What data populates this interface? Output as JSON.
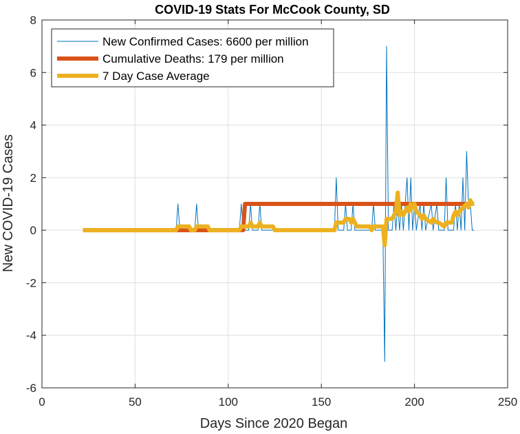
{
  "chart_data": {
    "type": "line",
    "title": "COVID-19 Stats For McCook County, SD",
    "xlabel": "Days Since 2020 Began",
    "ylabel": "New COVID-19 Cases",
    "xlim": [
      0,
      250
    ],
    "ylim": [
      -6,
      8
    ],
    "xticks": [
      0,
      50,
      100,
      150,
      200,
      250
    ],
    "yticks": [
      -6,
      -4,
      -2,
      0,
      2,
      4,
      6,
      8
    ],
    "grid": true,
    "legend_position": "top-left",
    "series": [
      {
        "name": "New Confirmed Cases: 6600 per million",
        "color": "#0072BD",
        "points": [
          [
            22,
            0
          ],
          [
            72,
            0
          ],
          [
            73,
            1
          ],
          [
            74,
            0
          ],
          [
            82,
            0
          ],
          [
            83,
            1
          ],
          [
            84,
            0
          ],
          [
            106,
            0
          ],
          [
            107,
            1
          ],
          [
            108,
            0
          ],
          [
            111,
            0
          ],
          [
            112,
            1
          ],
          [
            113,
            0
          ],
          [
            116,
            0
          ],
          [
            117,
            1
          ],
          [
            118,
            0
          ],
          [
            157,
            0
          ],
          [
            158,
            2
          ],
          [
            159,
            0
          ],
          [
            162,
            0
          ],
          [
            163,
            1
          ],
          [
            164,
            0
          ],
          [
            166,
            0
          ],
          [
            167,
            1
          ],
          [
            168,
            0
          ],
          [
            177,
            0
          ],
          [
            178,
            1
          ],
          [
            179,
            0
          ],
          [
            183,
            0
          ],
          [
            184,
            -5
          ],
          [
            185,
            7
          ],
          [
            186,
            0
          ],
          [
            188,
            0
          ],
          [
            189,
            1
          ],
          [
            190,
            0
          ],
          [
            191,
            1
          ],
          [
            192,
            0
          ],
          [
            193,
            1
          ],
          [
            194,
            0
          ],
          [
            196,
            2
          ],
          [
            197,
            0
          ],
          [
            198,
            2
          ],
          [
            199,
            0
          ],
          [
            200,
            1
          ],
          [
            201,
            0
          ],
          [
            203,
            1
          ],
          [
            204,
            0
          ],
          [
            205,
            1
          ],
          [
            206,
            0
          ],
          [
            209,
            1
          ],
          [
            210,
            0
          ],
          [
            212,
            1
          ],
          [
            213,
            0
          ],
          [
            216,
            0
          ],
          [
            217,
            2
          ],
          [
            218,
            0
          ],
          [
            221,
            0
          ],
          [
            222,
            1
          ],
          [
            223,
            0
          ],
          [
            224,
            1
          ],
          [
            225,
            0
          ],
          [
            226,
            2
          ],
          [
            227,
            0
          ],
          [
            228,
            3
          ],
          [
            229,
            1
          ],
          [
            230,
            1
          ],
          [
            231,
            0
          ],
          [
            232,
            0
          ]
        ]
      },
      {
        "name": "Cumulative Deaths: 179 per million",
        "color": "#D95319",
        "points": [
          [
            22,
            0
          ],
          [
            108,
            0
          ],
          [
            109,
            1
          ],
          [
            232,
            1
          ]
        ]
      },
      {
        "name": "7 Day Case Average",
        "color": "#EDB120",
        "points": [
          [
            22,
            0
          ],
          [
            72,
            0
          ],
          [
            73,
            0.14
          ],
          [
            79,
            0.14
          ],
          [
            80,
            0
          ],
          [
            82,
            0
          ],
          [
            83,
            0.14
          ],
          [
            89,
            0.14
          ],
          [
            90,
            0
          ],
          [
            106,
            0
          ],
          [
            107,
            0.14
          ],
          [
            111,
            0.14
          ],
          [
            112,
            0.29
          ],
          [
            113,
            0.14
          ],
          [
            114,
            0.14
          ],
          [
            116,
            0.14
          ],
          [
            117,
            0.29
          ],
          [
            118,
            0.14
          ],
          [
            124,
            0.14
          ],
          [
            125,
            0
          ],
          [
            157,
            0
          ],
          [
            158,
            0.29
          ],
          [
            162,
            0.29
          ],
          [
            163,
            0.43
          ],
          [
            165,
            0.43
          ],
          [
            166,
            0.29
          ],
          [
            167,
            0.43
          ],
          [
            169,
            0.14
          ],
          [
            176,
            0.14
          ],
          [
            177,
            0
          ],
          [
            178,
            0.14
          ],
          [
            183,
            0.14
          ],
          [
            184,
            -0.57
          ],
          [
            185,
            0.43
          ],
          [
            188,
            0.43
          ],
          [
            189,
            0.57
          ],
          [
            190,
            0.71
          ],
          [
            191,
            1.43
          ],
          [
            192,
            0.57
          ],
          [
            193,
            0.71
          ],
          [
            194,
            0.57
          ],
          [
            196,
            0.86
          ],
          [
            197,
            0.71
          ],
          [
            198,
            1.0
          ],
          [
            199,
            0.86
          ],
          [
            200,
            1.0
          ],
          [
            201,
            0.71
          ],
          [
            203,
            0.57
          ],
          [
            204,
            0.43
          ],
          [
            205,
            0.57
          ],
          [
            206,
            0.43
          ],
          [
            209,
            0.29
          ],
          [
            210,
            0.43
          ],
          [
            212,
            0.29
          ],
          [
            213,
            0.29
          ],
          [
            216,
            0.14
          ],
          [
            217,
            0.29
          ],
          [
            220,
            0.29
          ],
          [
            221,
            0.57
          ],
          [
            222,
            0.71
          ],
          [
            223,
            0.57
          ],
          [
            224,
            0.71
          ],
          [
            226,
            0.86
          ],
          [
            228,
            1.0
          ],
          [
            229,
            0.86
          ],
          [
            230,
            1.14
          ],
          [
            231,
            1.0
          ],
          [
            232,
            1.0
          ]
        ]
      }
    ]
  }
}
